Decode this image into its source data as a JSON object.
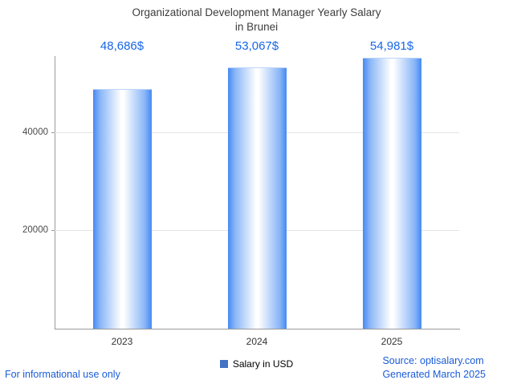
{
  "title": {
    "line1": "Organizational Development Manager Yearly Salary",
    "line2": "in Brunei"
  },
  "chart_data": {
    "type": "bar",
    "categories": [
      "2023",
      "2024",
      "2025"
    ],
    "series": [
      {
        "name": "Salary in USD",
        "values": [
          48686,
          53067,
          54981
        ]
      }
    ],
    "value_labels": [
      "48,686$",
      "53,067$",
      "54,981$"
    ],
    "ylabel": "",
    "xlabel": "",
    "ylim": [
      0,
      55500
    ],
    "yticks": [
      20000,
      40000
    ],
    "grid": true,
    "legend_position": "bottom"
  },
  "legend": {
    "label": "Salary in USD",
    "swatch_color": "#4472c4"
  },
  "footer": {
    "disclaimer": "For informational use only",
    "source": "Source: optisalary.com",
    "generated": "Generated March 2025"
  },
  "colors": {
    "bar_edge": "#4689f2",
    "bar_mid": "#8ab6f7",
    "bar_center": "#ffffff",
    "value_label": "#1766e8",
    "footer_text": "#1a5cd8",
    "title": "#3c3c3c",
    "axis": "#9a9a9a",
    "grid": "#e4e4e4"
  }
}
